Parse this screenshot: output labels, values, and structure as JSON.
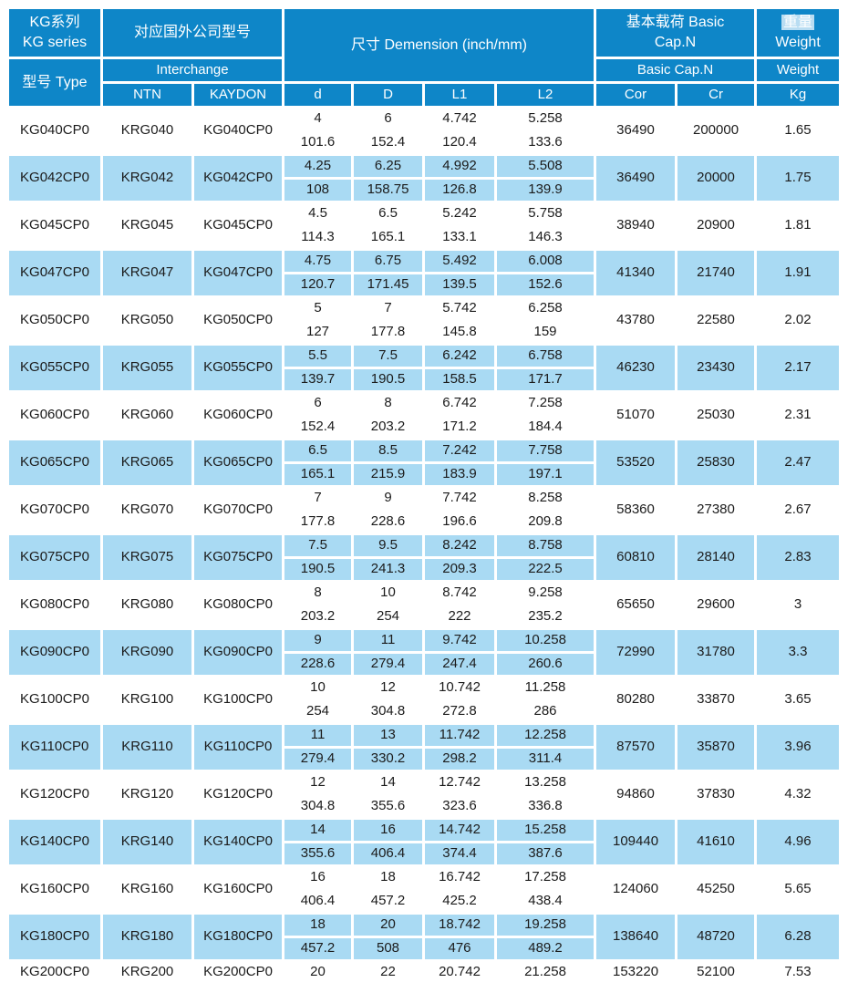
{
  "colors": {
    "header_blue": "#0e86c8",
    "row_blue": "#a9daf3",
    "text_dark": "#1b1b1b"
  },
  "table": {
    "header": {
      "kg_series_cn": "KG系列",
      "kg_series_en": "KG series",
      "type_label": "型号 Type",
      "interchange_cn": "对应国外公司型号",
      "interchange_en": "Interchange",
      "ntn": "NTN",
      "kaydon": "KAYDON",
      "dimension_title": "尺寸 Demension (inch/mm)",
      "dim_d": "d",
      "dim_D": "D",
      "dim_L1": "L1",
      "dim_L2": "L2",
      "basic_cap_cn_line1": "基本载荷 Basic",
      "basic_cap_cn_line2": "Cap.N",
      "basic_cap_en": "Basic  Cap.N",
      "cor": "Cor",
      "cr": "Cr",
      "weight_cn": "重量",
      "weight_en": "Weight",
      "weight_row2": "Weight",
      "kg_unit": "Kg"
    },
    "rows": [
      {
        "type": "KG040CP0",
        "ntn": "KRG040",
        "kaydon": "KG040CP0",
        "d": [
          "4",
          "101.6"
        ],
        "D": [
          "6",
          "152.4"
        ],
        "L1": [
          "4.742",
          "120.4"
        ],
        "L2": [
          "5.258",
          "133.6"
        ],
        "cor": "36490",
        "cr": "200000",
        "kg": "1.65"
      },
      {
        "type": "KG042CP0",
        "ntn": "KRG042",
        "kaydon": "KG042CP0",
        "d": [
          "4.25",
          "108"
        ],
        "D": [
          "6.25",
          "158.75"
        ],
        "L1": [
          "4.992",
          "126.8"
        ],
        "L2": [
          "5.508",
          "139.9"
        ],
        "cor": "36490",
        "cr": "20000",
        "kg": "1.75"
      },
      {
        "type": "KG045CP0",
        "ntn": "KRG045",
        "kaydon": "KG045CP0",
        "d": [
          "4.5",
          "114.3"
        ],
        "D": [
          "6.5",
          "165.1"
        ],
        "L1": [
          "5.242",
          "133.1"
        ],
        "L2": [
          "5.758",
          "146.3"
        ],
        "cor": "38940",
        "cr": "20900",
        "kg": "1.81"
      },
      {
        "type": "KG047CP0",
        "ntn": "KRG047",
        "kaydon": "KG047CP0",
        "d": [
          "4.75",
          "120.7"
        ],
        "D": [
          "6.75",
          "171.45"
        ],
        "L1": [
          "5.492",
          "139.5"
        ],
        "L2": [
          "6.008",
          "152.6"
        ],
        "cor": "41340",
        "cr": "21740",
        "kg": "1.91"
      },
      {
        "type": "KG050CP0",
        "ntn": "KRG050",
        "kaydon": "KG050CP0",
        "d": [
          "5",
          "127"
        ],
        "D": [
          "7",
          "177.8"
        ],
        "L1": [
          "5.742",
          "145.8"
        ],
        "L2": [
          "6.258",
          "159"
        ],
        "cor": "43780",
        "cr": "22580",
        "kg": "2.02"
      },
      {
        "type": "KG055CP0",
        "ntn": "KRG055",
        "kaydon": "KG055CP0",
        "d": [
          "5.5",
          "139.7"
        ],
        "D": [
          "7.5",
          "190.5"
        ],
        "L1": [
          "6.242",
          "158.5"
        ],
        "L2": [
          "6.758",
          "171.7"
        ],
        "cor": "46230",
        "cr": "23430",
        "kg": "2.17"
      },
      {
        "type": "KG060CP0",
        "ntn": "KRG060",
        "kaydon": "KG060CP0",
        "d": [
          "6",
          "152.4"
        ],
        "D": [
          "8",
          "203.2"
        ],
        "L1": [
          "6.742",
          "171.2"
        ],
        "L2": [
          "7.258",
          "184.4"
        ],
        "cor": "51070",
        "cr": "25030",
        "kg": "2.31"
      },
      {
        "type": "KG065CP0",
        "ntn": "KRG065",
        "kaydon": "KG065CP0",
        "d": [
          "6.5",
          "165.1"
        ],
        "D": [
          "8.5",
          "215.9"
        ],
        "L1": [
          "7.242",
          "183.9"
        ],
        "L2": [
          "7.758",
          "197.1"
        ],
        "cor": "53520",
        "cr": "25830",
        "kg": "2.47"
      },
      {
        "type": "KG070CP0",
        "ntn": "KRG070",
        "kaydon": "KG070CP0",
        "d": [
          "7",
          "177.8"
        ],
        "D": [
          "9",
          "228.6"
        ],
        "L1": [
          "7.742",
          "196.6"
        ],
        "L2": [
          "8.258",
          "209.8"
        ],
        "cor": "58360",
        "cr": "27380",
        "kg": "2.67"
      },
      {
        "type": "KG075CP0",
        "ntn": "KRG075",
        "kaydon": "KG075CP0",
        "d": [
          "7.5",
          "190.5"
        ],
        "D": [
          "9.5",
          "241.3"
        ],
        "L1": [
          "8.242",
          "209.3"
        ],
        "L2": [
          "8.758",
          "222.5"
        ],
        "cor": "60810",
        "cr": "28140",
        "kg": "2.83"
      },
      {
        "type": "KG080CP0",
        "ntn": "KRG080",
        "kaydon": "KG080CP0",
        "d": [
          "8",
          "203.2"
        ],
        "D": [
          "10",
          "254"
        ],
        "L1": [
          "8.742",
          "222"
        ],
        "L2": [
          "9.258",
          "235.2"
        ],
        "cor": "65650",
        "cr": "29600",
        "kg": "3"
      },
      {
        "type": "KG090CP0",
        "ntn": "KRG090",
        "kaydon": "KG090CP0",
        "d": [
          "9",
          "228.6"
        ],
        "D": [
          "11",
          "279.4"
        ],
        "L1": [
          "9.742",
          "247.4"
        ],
        "L2": [
          "10.258",
          "260.6"
        ],
        "cor": "72990",
        "cr": "31780",
        "kg": "3.3"
      },
      {
        "type": "KG100CP0",
        "ntn": "KRG100",
        "kaydon": "KG100CP0",
        "d": [
          "10",
          "254"
        ],
        "D": [
          "12",
          "304.8"
        ],
        "L1": [
          "10.742",
          "272.8"
        ],
        "L2": [
          "11.258",
          "286"
        ],
        "cor": "80280",
        "cr": "33870",
        "kg": "3.65"
      },
      {
        "type": "KG110CP0",
        "ntn": "KRG110",
        "kaydon": "KG110CP0",
        "d": [
          "11",
          "279.4"
        ],
        "D": [
          "13",
          "330.2"
        ],
        "L1": [
          "11.742",
          "298.2"
        ],
        "L2": [
          "12.258",
          "311.4"
        ],
        "cor": "87570",
        "cr": "35870",
        "kg": "3.96"
      },
      {
        "type": "KG120CP0",
        "ntn": "KRG120",
        "kaydon": "KG120CP0",
        "d": [
          "12",
          "304.8"
        ],
        "D": [
          "14",
          "355.6"
        ],
        "L1": [
          "12.742",
          "323.6"
        ],
        "L2": [
          "13.258",
          "336.8"
        ],
        "cor": "94860",
        "cr": "37830",
        "kg": "4.32"
      },
      {
        "type": "KG140CP0",
        "ntn": "KRG140",
        "kaydon": "KG140CP0",
        "d": [
          "14",
          "355.6"
        ],
        "D": [
          "16",
          "406.4"
        ],
        "L1": [
          "14.742",
          "374.4"
        ],
        "L2": [
          "15.258",
          "387.6"
        ],
        "cor": "109440",
        "cr": "41610",
        "kg": "4.96"
      },
      {
        "type": "KG160CP0",
        "ntn": "KRG160",
        "kaydon": "KG160CP0",
        "d": [
          "16",
          "406.4"
        ],
        "D": [
          "18",
          "457.2"
        ],
        "L1": [
          "16.742",
          "425.2"
        ],
        "L2": [
          "17.258",
          "438.4"
        ],
        "cor": "124060",
        "cr": "45250",
        "kg": "5.65"
      },
      {
        "type": "KG180CP0",
        "ntn": "KRG180",
        "kaydon": "KG180CP0",
        "d": [
          "18",
          "457.2"
        ],
        "D": [
          "20",
          "508"
        ],
        "L1": [
          "18.742",
          "476"
        ],
        "L2": [
          "19.258",
          "489.2"
        ],
        "cor": "138640",
        "cr": "48720",
        "kg": "6.28"
      },
      {
        "type": "KG200CP0",
        "ntn": "KRG200",
        "kaydon": "KG200CP0",
        "d": [
          "20"
        ],
        "D": [
          "22"
        ],
        "L1": [
          "20.742"
        ],
        "L2": [
          "21.258"
        ],
        "cor": "153220",
        "cr": "52100",
        "kg": "7.53"
      }
    ]
  }
}
